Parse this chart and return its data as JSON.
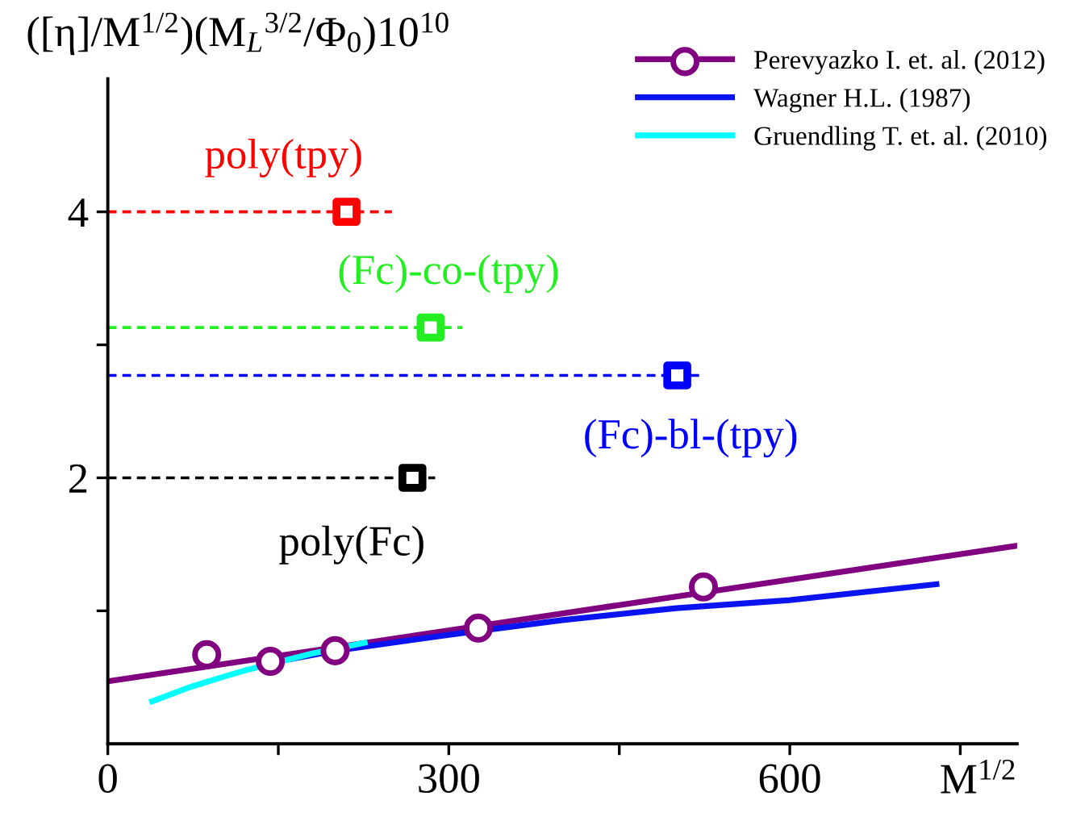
{
  "chart_data": {
    "type": "line",
    "xlabel": "M$^{1/2}$",
    "ylabel": "([η]/M$^{1/2}$)(M$_{L}$$^{3/2}$/Φ$_{0}$)10$^{10}$",
    "xlim": [
      0,
      800
    ],
    "ylim": [
      0,
      5.0
    ],
    "xticks": [
      0,
      {
        "value": 150,
        "label": null
      },
      300,
      {
        "value": 450,
        "label": null
      },
      600,
      {
        "value": 750,
        "label": null
      }
    ],
    "yticks": [
      {
        "value": 1,
        "label": null
      },
      2,
      {
        "value": 3,
        "label": null
      },
      4
    ],
    "grid": false,
    "legend": "top right",
    "series": [
      {
        "name": "Perevyazko I. et. al. (2012)",
        "color": "#800080",
        "x": [
          0,
          800
        ],
        "values": [
          0.47,
          1.49
        ]
      },
      {
        "type": "scatter",
        "marker": "circle",
        "color": "#800080",
        "x": [
          87,
          143,
          200,
          326,
          524
        ],
        "values": [
          0.67,
          0.62,
          0.7,
          0.87,
          1.18
        ]
      },
      {
        "name": "Wagner H.L. (1987)",
        "color": "#0a14f0",
        "x": [
          150,
          200,
          300,
          400,
          500,
          600,
          729
        ],
        "values": [
          0.62,
          0.7,
          0.82,
          0.93,
          1.02,
          1.08,
          1.2
        ]
      },
      {
        "name": "Gruendling T. et. al. (2010)",
        "color": "#00ffff",
        "x": [
          39,
          70,
          100,
          120,
          180,
          226
        ],
        "values": [
          0.32,
          0.42,
          0.5,
          0.55,
          0.68,
          0.76
        ]
      },
      {
        "type": "line",
        "line_style": "dashed",
        "color": "#ff0000",
        "x": [
          0,
          250
        ],
        "values": [
          4,
          4
        ]
      },
      {
        "type": "line",
        "line_style": "dashed",
        "color": "#22ee22",
        "x": [
          0,
          312
        ],
        "values": [
          3.13,
          3.13
        ]
      },
      {
        "type": "line",
        "line_style": "dashed",
        "color": "#0000ff",
        "x": [
          0,
          525
        ],
        "values": [
          2.77,
          2.77
        ]
      },
      {
        "type": "line",
        "line_style": "dashed",
        "color": "#000000",
        "x": [
          0,
          288
        ],
        "values": [
          2,
          2
        ]
      },
      {
        "type": "scatter",
        "marker": "square",
        "color": "#ff0000",
        "x": [
          210
        ],
        "values": [
          4
        ]
      },
      {
        "type": "scatter",
        "marker": "square",
        "color": "#22ee22",
        "x": [
          284
        ],
        "values": [
          3.13
        ]
      },
      {
        "type": "scatter",
        "marker": "square",
        "color": "#0000ff",
        "x": [
          501
        ],
        "values": [
          2.77
        ]
      },
      {
        "type": "scatter",
        "marker": "square",
        "color": "#000000",
        "x": [
          268
        ],
        "values": [
          2
        ]
      }
    ],
    "annotations": [
      {
        "text": "poly(tpy)",
        "x": 210,
        "y": 4
      },
      {
        "text": "(Fc)-co-(tpy)",
        "x": 284,
        "y": 3.13
      },
      {
        "text": "(Fc)-bl-(tpy)",
        "x": 501,
        "y": 2.77
      },
      {
        "text": "poly(Fc)",
        "x": 268,
        "y": 2
      }
    ]
  }
}
